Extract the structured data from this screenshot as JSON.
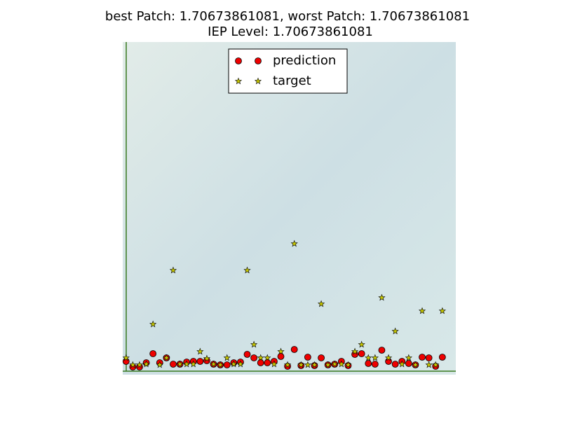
{
  "chart_data": {
    "type": "scatter",
    "title": "best Patch: 1.70673861081, worst Patch: 1.70673861081",
    "subtitle": "IEP Level: 1.70673861081",
    "x": [
      0,
      1,
      2,
      3,
      4,
      5,
      6,
      7,
      8,
      9,
      10,
      11,
      12,
      13,
      14,
      15,
      16,
      17,
      18,
      19,
      20,
      21,
      22,
      23,
      24,
      25,
      26,
      27,
      28,
      29,
      30,
      31,
      32,
      33,
      34,
      35,
      36,
      37,
      38,
      39,
      40,
      41,
      42,
      43,
      44,
      45,
      46,
      47
    ],
    "xlim": [
      -0.5,
      49
    ],
    "ylim": [
      -0.5,
      47
    ],
    "legend": "upper center",
    "series": [
      {
        "name": "prediction",
        "color": "#ee0000",
        "marker": "circle",
        "values": [
          1.4,
          0.6,
          0.6,
          1.2,
          2.5,
          1.2,
          1.9,
          1.0,
          1.0,
          1.3,
          1.4,
          1.4,
          1.5,
          1.0,
          0.9,
          0.9,
          1.2,
          1.3,
          2.4,
          1.9,
          1.2,
          1.2,
          1.4,
          2.1,
          0.7,
          3.1,
          0.8,
          2.0,
          0.8,
          1.9,
          0.9,
          1.0,
          1.4,
          0.8,
          2.4,
          2.5,
          1.1,
          1.0,
          3.0,
          1.4,
          1.0,
          1.4,
          1.1,
          0.9,
          2.0,
          1.9,
          0.7,
          2.0
        ]
      },
      {
        "name": "target",
        "color": "#c8c800",
        "marker": "star",
        "values": [
          1.9,
          0.9,
          0.9,
          1.0,
          6.7,
          0.9,
          1.9,
          14.4,
          1.0,
          1.0,
          1.0,
          2.8,
          1.8,
          1.0,
          0.9,
          1.9,
          1.0,
          1.0,
          14.4,
          3.8,
          1.9,
          1.9,
          1.0,
          2.8,
          0.9,
          18.2,
          0.9,
          0.9,
          0.9,
          9.6,
          0.9,
          1.0,
          1.0,
          0.9,
          2.8,
          3.8,
          1.9,
          1.9,
          10.5,
          1.9,
          5.7,
          1.0,
          1.9,
          0.9,
          8.6,
          0.9,
          0.9,
          8.6
        ]
      }
    ]
  }
}
